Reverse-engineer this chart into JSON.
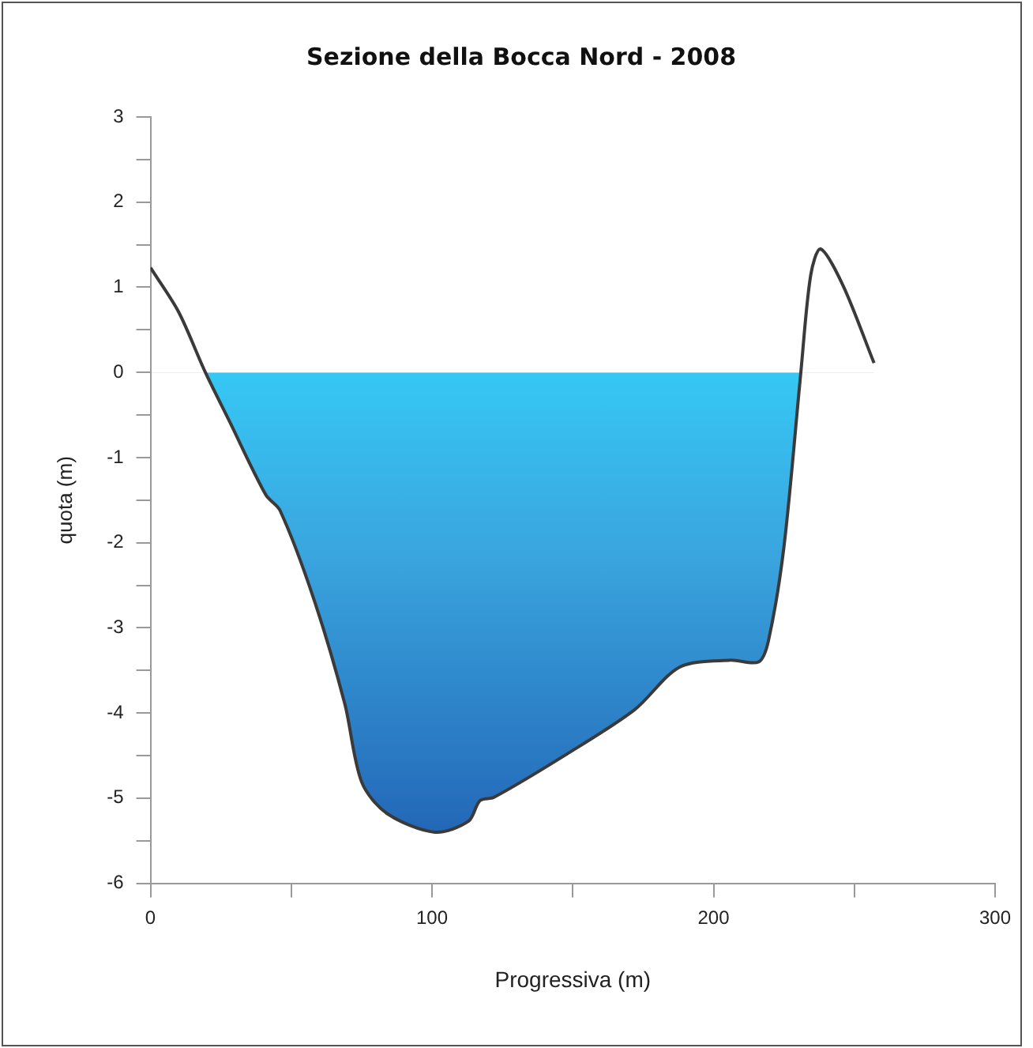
{
  "chart_data": {
    "type": "area",
    "title": "Sezione della Bocca Nord - 2008",
    "xlabel": "Progressiva (m)",
    "ylabel": "quota (m)",
    "x": [
      0,
      10,
      19.5,
      28,
      41,
      46,
      58,
      69,
      75,
      84,
      101,
      113,
      117,
      122,
      148,
      172,
      188,
      206,
      216,
      219.5,
      225,
      231,
      234.5,
      238,
      246,
      257
    ],
    "series": [
      {
        "color": "#1f5cb0",
        "values": [
          1.23,
          0.71,
          0,
          -0.57,
          -1.44,
          -1.62,
          -2.66,
          -3.89,
          -4.81,
          -5.18,
          -5.4,
          -5.27,
          -5.03,
          -4.99,
          -4.48,
          -3.96,
          -3.46,
          -3.38,
          -3.4,
          -3.15,
          -2.05,
          0,
          1.14,
          1.45,
          1.02,
          0.11
        ]
      }
    ],
    "xlim": [
      0,
      300
    ],
    "xticks": [
      0,
      {
        "value": 50,
        "label": null
      },
      100,
      {
        "value": 150,
        "label": null
      },
      200,
      {
        "value": 250,
        "label": null
      },
      300
    ],
    "ylim": [
      -6,
      3
    ],
    "yticks": [
      -6,
      {
        "value": -5.5,
        "label": null
      },
      -5,
      {
        "value": -4.5,
        "label": null
      },
      -4,
      {
        "value": -3.5,
        "label": null
      },
      -3,
      {
        "value": -2.5,
        "label": null
      },
      -2,
      {
        "value": -1.5,
        "label": null
      },
      -1,
      {
        "value": -0.5,
        "label": null
      },
      0,
      {
        "value": 0.5,
        "label": null
      },
      1,
      {
        "value": 1.5,
        "label": null
      },
      2,
      {
        "value": 2.5,
        "label": null
      },
      3
    ],
    "grid": false,
    "legend": false
  }
}
